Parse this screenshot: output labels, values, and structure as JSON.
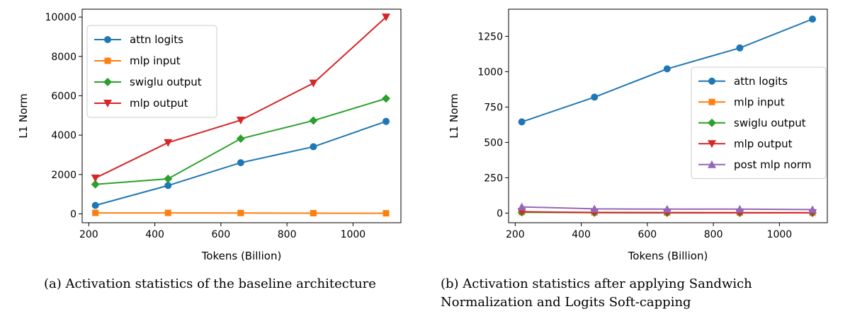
{
  "chart_data": [
    {
      "type": "line",
      "caption": "(a) Activation statistics of the baseline architecture",
      "xlabel": "Tokens (Billion)",
      "ylabel": "L1 Norm",
      "xlim": [
        180,
        1145
      ],
      "ylim": [
        -450,
        10400
      ],
      "xticks": [
        200,
        400,
        600,
        800,
        1000
      ],
      "yticks": [
        0,
        2000,
        4000,
        6000,
        8000,
        10000
      ],
      "legend_position": "upper-left",
      "x": [
        220,
        440,
        660,
        880,
        1100
      ],
      "series": [
        {
          "name": "attn logits",
          "color": "#1f77b4",
          "marker": "circle",
          "values": [
            430,
            1440,
            2600,
            3410,
            4700
          ]
        },
        {
          "name": "mlp input",
          "color": "#ff7f0e",
          "marker": "square",
          "values": [
            50,
            50,
            45,
            35,
            30
          ]
        },
        {
          "name": "swiglu output",
          "color": "#2ca02c",
          "marker": "diamond",
          "values": [
            1500,
            1780,
            3820,
            4740,
            5860
          ]
        },
        {
          "name": "mlp output",
          "color": "#d62728",
          "marker": "triangle-down",
          "values": [
            1820,
            3620,
            4760,
            6640,
            10000
          ]
        }
      ]
    },
    {
      "type": "line",
      "caption": "(b) Activation statistics after applying Sandwich Normalization and Logits Soft-capping",
      "xlabel": "Tokens (Billion)",
      "ylabel": "L1 Norm",
      "xlim": [
        180,
        1145
      ],
      "ylim": [
        -68,
        1442
      ],
      "xticks": [
        200,
        400,
        600,
        800,
        1000
      ],
      "yticks": [
        0,
        250,
        500,
        750,
        1000,
        1250
      ],
      "legend_position": "center-right",
      "x": [
        220,
        440,
        660,
        880,
        1100
      ],
      "series": [
        {
          "name": "attn logits",
          "color": "#1f77b4",
          "marker": "circle",
          "values": [
            645,
            820,
            1020,
            1168,
            1372
          ]
        },
        {
          "name": "mlp input",
          "color": "#ff7f0e",
          "marker": "square",
          "values": [
            8,
            5,
            4,
            4,
            3
          ]
        },
        {
          "name": "swiglu output",
          "color": "#2ca02c",
          "marker": "diamond",
          "values": [
            6,
            3,
            2,
            2,
            2
          ]
        },
        {
          "name": "mlp output",
          "color": "#d62728",
          "marker": "triangle-down",
          "values": [
            10,
            4,
            3,
            2,
            2
          ]
        },
        {
          "name": "post mlp norm",
          "color": "#9467bd",
          "marker": "triangle-up",
          "values": [
            44,
            30,
            28,
            28,
            25
          ]
        }
      ]
    }
  ]
}
